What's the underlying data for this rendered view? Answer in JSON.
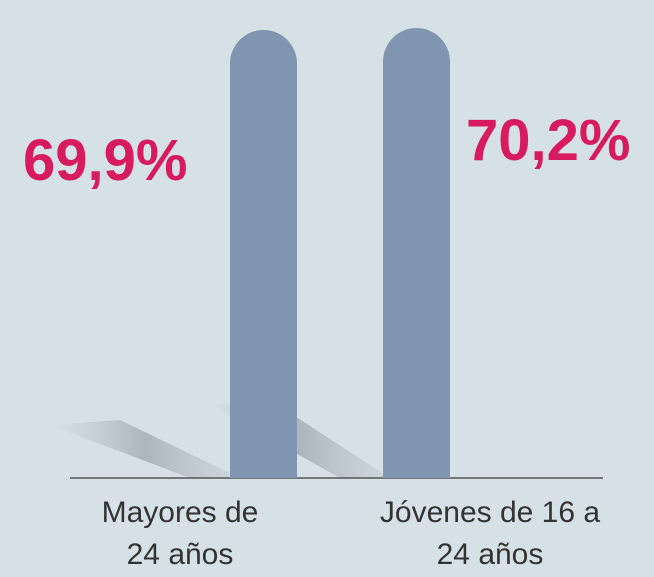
{
  "chart_data": {
    "type": "bar",
    "categories": [
      "Mayores de 24 años",
      "Jóvenes de 16 a 24 años"
    ],
    "values": [
      69.9,
      70.2
    ],
    "value_labels": [
      "69,9%",
      "70,2%"
    ],
    "color": "#8096b0"
  }
}
